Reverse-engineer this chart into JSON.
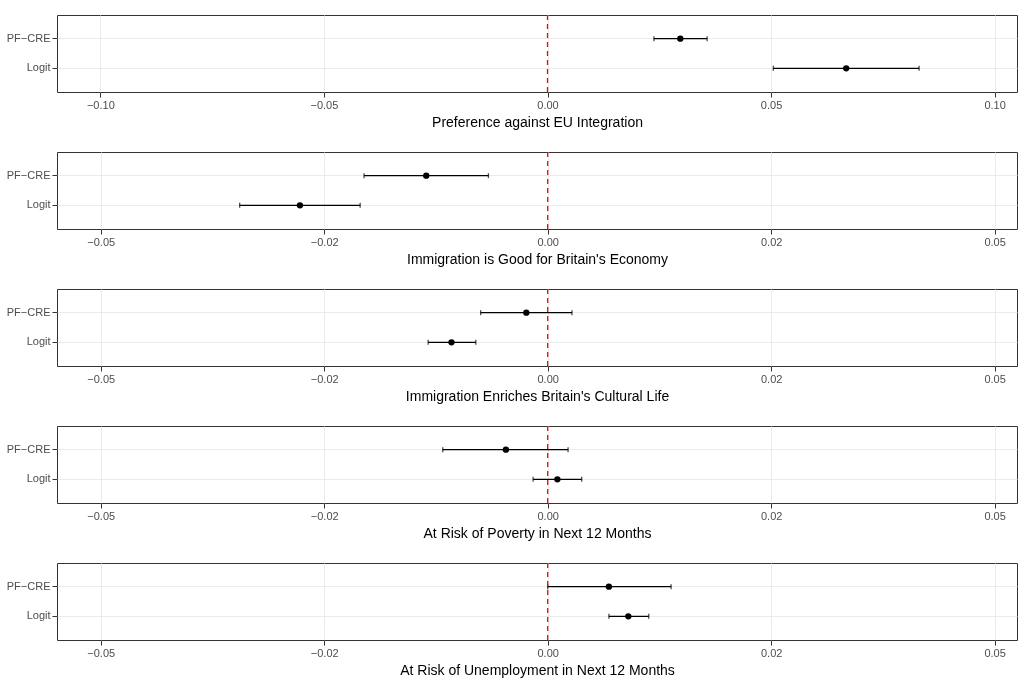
{
  "chart_data": [
    {
      "type": "scatter",
      "orientation": "horizontal",
      "xlabel": "Preference against EU Integration",
      "categories": [
        "PF−CRE",
        "Logit"
      ],
      "values": [
        0.0297,
        0.0668
      ],
      "errors": [
        [
          0.0238,
          0.0357
        ],
        [
          0.0505,
          0.0831
        ]
      ],
      "color": "#000000",
      "xlim": [
        -0.1097,
        0.105
      ],
      "xticks": [
        {
          "value": -0.1,
          "label": "−0.10"
        },
        {
          "value": -0.05,
          "label": "−0.05"
        },
        {
          "value": 0,
          "label": "0.00"
        },
        {
          "value": 0.05,
          "label": "0.05"
        },
        {
          "value": 0.1,
          "label": "0.10"
        }
      ],
      "grid": true,
      "marker": "circle",
      "ref_lines": [
        {
          "axis": "x",
          "value": 0,
          "color": "#ff0000",
          "line_style": "dashed"
        }
      ]
    },
    {
      "type": "scatter",
      "orientation": "horizontal",
      "xlabel": "Immigration is Good for Britain's Economy",
      "categories": [
        "PF−CRE",
        "Logit"
      ],
      "values": [
        -0.0125,
        -0.0255
      ],
      "errors": [
        [
          -0.0189,
          -0.0061
        ],
        [
          -0.0317,
          -0.0193
        ]
      ],
      "color": "#000000",
      "xlim": [
        -0.0505,
        0.0483
      ],
      "xticks": [
        {
          "value": -0.046,
          "label": "−0.05"
        },
        {
          "value": -0.023,
          "label": "−0.02"
        },
        {
          "value": 0,
          "label": "0.00"
        },
        {
          "value": 0.023,
          "label": "0.02"
        },
        {
          "value": 0.046,
          "label": "0.05"
        }
      ],
      "grid": true,
      "marker": "circle",
      "ref_lines": [
        {
          "axis": "x",
          "value": 0,
          "color": "#ff0000",
          "line_style": "dashed"
        }
      ]
    },
    {
      "type": "scatter",
      "orientation": "horizontal",
      "xlabel": "Immigration Enriches Britain's Cultural Life",
      "categories": [
        "PF−CRE",
        "Logit"
      ],
      "values": [
        -0.0022,
        -0.0099
      ],
      "errors": [
        [
          -0.0069,
          0.0025
        ],
        [
          -0.0123,
          -0.0074
        ]
      ],
      "color": "#000000",
      "xlim": [
        -0.0505,
        0.0483
      ],
      "xticks": [
        {
          "value": -0.046,
          "label": "−0.05"
        },
        {
          "value": -0.023,
          "label": "−0.02"
        },
        {
          "value": 0,
          "label": "0.00"
        },
        {
          "value": 0.023,
          "label": "0.02"
        },
        {
          "value": 0.046,
          "label": "0.05"
        }
      ],
      "grid": true,
      "marker": "circle",
      "ref_lines": [
        {
          "axis": "x",
          "value": 0,
          "color": "#ff0000",
          "line_style": "dashed"
        }
      ]
    },
    {
      "type": "scatter",
      "orientation": "horizontal",
      "xlabel": "At Risk of Poverty in Next 12 Months",
      "categories": [
        "PF−CRE",
        "Logit"
      ],
      "values": [
        -0.0043,
        0.001
      ],
      "errors": [
        [
          -0.0108,
          0.0021
        ],
        [
          -0.0015,
          0.0035
        ]
      ],
      "color": "#000000",
      "xlim": [
        -0.0505,
        0.0483
      ],
      "xticks": [
        {
          "value": -0.046,
          "label": "−0.05"
        },
        {
          "value": -0.023,
          "label": "−0.02"
        },
        {
          "value": 0,
          "label": "0.00"
        },
        {
          "value": 0.023,
          "label": "0.02"
        },
        {
          "value": 0.046,
          "label": "0.05"
        }
      ],
      "grid": true,
      "marker": "circle",
      "ref_lines": [
        {
          "axis": "x",
          "value": 0,
          "color": "#ff0000",
          "line_style": "dashed"
        }
      ]
    },
    {
      "type": "scatter",
      "orientation": "horizontal",
      "xlabel": "At Risk of Unemployment in Next 12 Months",
      "categories": [
        "PF−CRE",
        "Logit"
      ],
      "values": [
        0.0063,
        0.0083
      ],
      "errors": [
        [
          0.0,
          0.0127
        ],
        [
          0.0063,
          0.0104
        ]
      ],
      "color": "#000000",
      "xlim": [
        -0.0505,
        0.0483
      ],
      "xticks": [
        {
          "value": -0.046,
          "label": "−0.05"
        },
        {
          "value": -0.023,
          "label": "−0.02"
        },
        {
          "value": 0,
          "label": "0.00"
        },
        {
          "value": 0.023,
          "label": "0.02"
        },
        {
          "value": 0.046,
          "label": "0.05"
        }
      ],
      "grid": true,
      "marker": "circle",
      "ref_lines": [
        {
          "axis": "x",
          "value": 0,
          "color": "#ff0000",
          "line_style": "dashed"
        }
      ]
    }
  ]
}
